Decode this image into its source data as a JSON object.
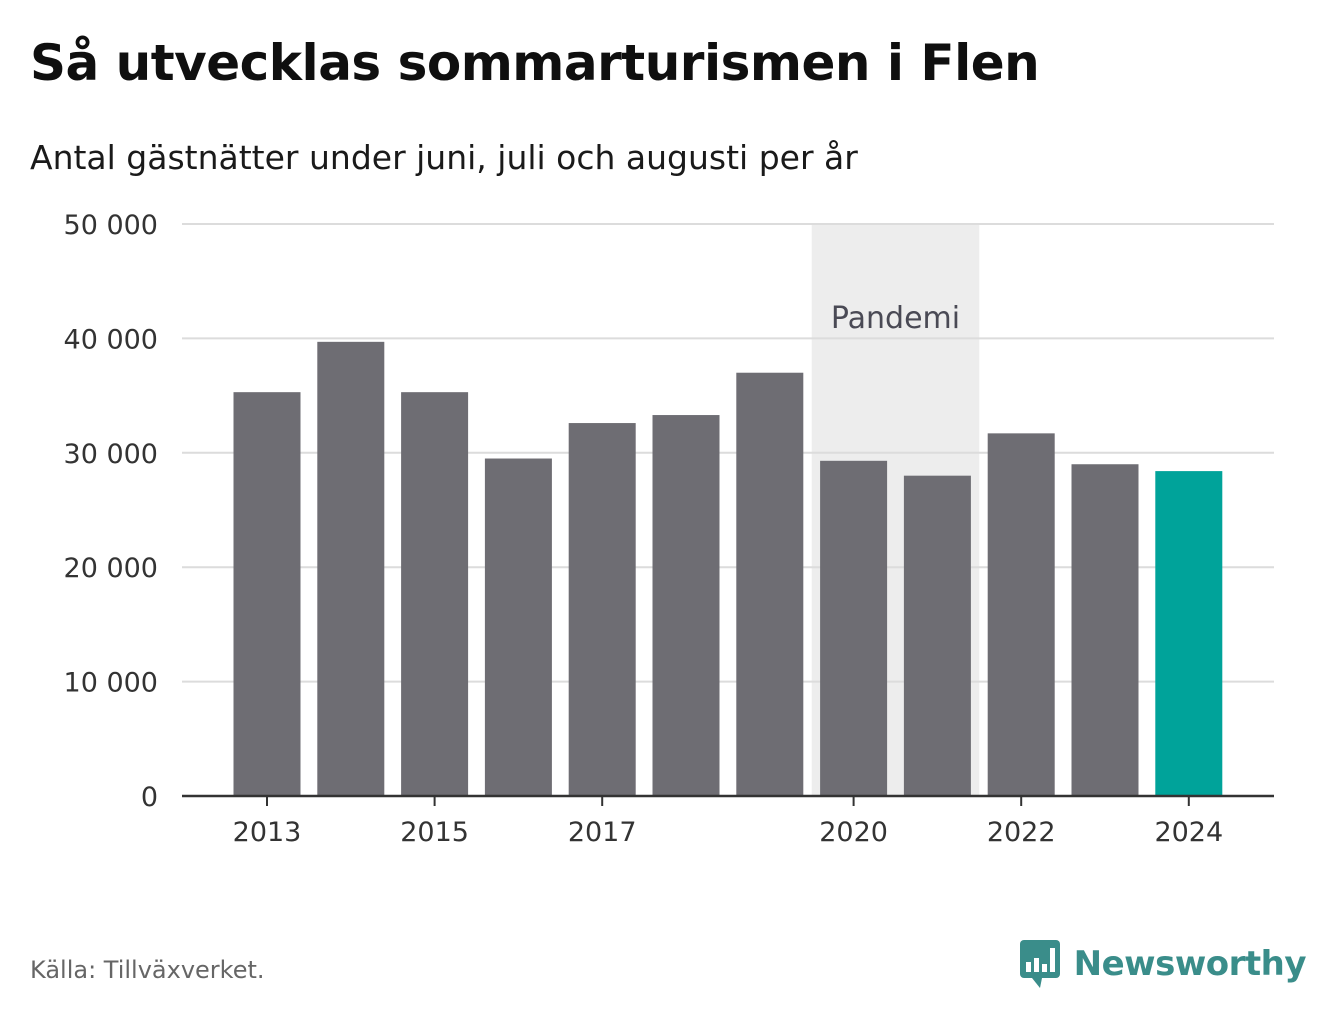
{
  "title": "Så utvecklas sommarturismen i Flen",
  "subtitle": "Antal gästnätter under juni, juli och augusti per år",
  "source": "Källa: Tillväxverket.",
  "brand": {
    "name": "Newsworthy",
    "icon": "newsworthy-logo-icon",
    "color": "#3a8d8a"
  },
  "chart_data": {
    "type": "bar",
    "categories": [
      "2013",
      "2014",
      "2015",
      "2016",
      "2017",
      "2018",
      "2019",
      "2020",
      "2021",
      "2022",
      "2023",
      "2024"
    ],
    "values": [
      35300,
      39700,
      35300,
      29500,
      32600,
      33300,
      37000,
      29300,
      28000,
      31700,
      29000,
      28400
    ],
    "x_tick_labels": [
      "2013",
      "2015",
      "2017",
      "2020",
      "2022",
      "2024"
    ],
    "y_ticks": [
      0,
      10000,
      20000,
      30000,
      40000,
      50000
    ],
    "y_tick_labels": [
      "0",
      "10 000",
      "20 000",
      "30 000",
      "40 000",
      "50 000"
    ],
    "ylim": [
      0,
      50000
    ],
    "grid": true,
    "bar_color": "#6e6d73",
    "highlight": {
      "category": "2024",
      "color": "#00a39a"
    },
    "annotation": {
      "label": "Pandemi",
      "from": "2020",
      "to": "2021",
      "color": "#ededed"
    }
  }
}
